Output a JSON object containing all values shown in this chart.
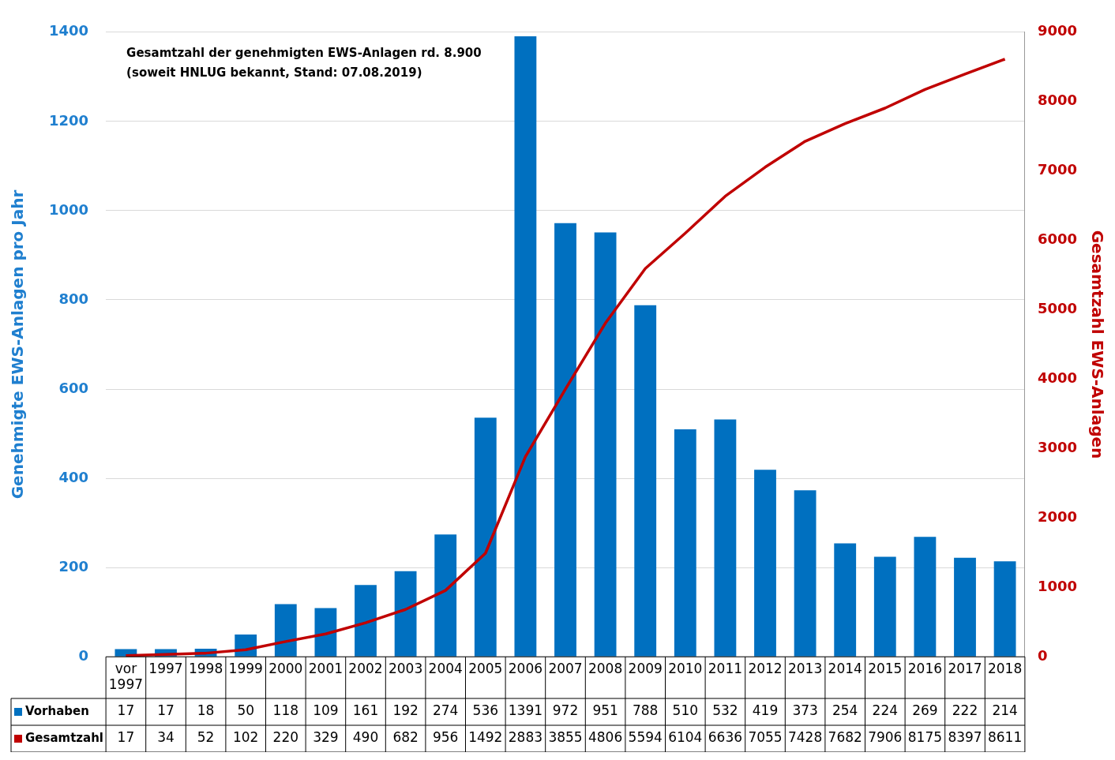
{
  "chart_data": {
    "type": "bar",
    "ylabel": "Genehmigte EWS-Anlagen pro Jahr",
    "y2label": "Gesamtzahl EWS-Anlagen",
    "annotations": [
      "Gesamtzahl der genehmigten EWS-Anlagen rd. 8.900",
      "(soweit HNLUG bekannt, Stand: 07.08.2019)"
    ],
    "categories": [
      "vor 1997",
      "1997",
      "1998",
      "1999",
      "2000",
      "2001",
      "2002",
      "2003",
      "2004",
      "2005",
      "2006",
      "2007",
      "2008",
      "2009",
      "2010",
      "2011",
      "2012",
      "2013",
      "2014",
      "2015",
      "2016",
      "2017",
      "2018"
    ],
    "series": [
      {
        "name": "Vorhaben",
        "color": "#0070c0",
        "values": [
          17,
          17,
          18,
          50,
          118,
          109,
          161,
          192,
          274,
          536,
          1391,
          972,
          951,
          788,
          510,
          532,
          419,
          373,
          254,
          224,
          269,
          222,
          214
        ]
      },
      {
        "name": "Gesamtzahl",
        "type": "line",
        "axis": "y2",
        "color": "#c00000",
        "values": [
          17,
          34,
          52,
          102,
          220,
          329,
          490,
          682,
          956,
          1492,
          2883,
          3855,
          4806,
          5594,
          6104,
          6636,
          7055,
          7428,
          7682,
          7906,
          8175,
          8397,
          8611
        ]
      }
    ],
    "ylim": [
      0,
      1400
    ],
    "yticks": [
      0,
      200,
      400,
      600,
      800,
      1000,
      1200,
      1400
    ],
    "y2lim": [
      0,
      9000
    ],
    "y2ticks": [
      0,
      1000,
      2000,
      3000,
      4000,
      5000,
      6000,
      7000,
      8000,
      9000
    ],
    "grid": "y",
    "legend": "bottom left",
    "marker": "none",
    "line_style": "solid",
    "data_labels": true
  }
}
